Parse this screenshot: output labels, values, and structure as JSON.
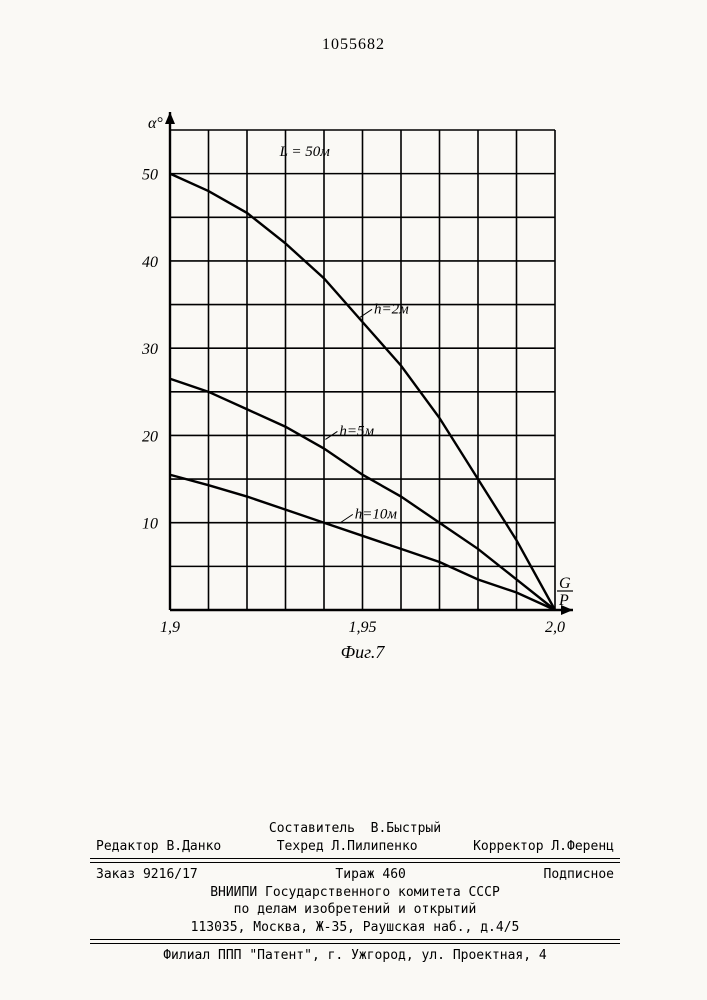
{
  "header_number": "1055682",
  "chart": {
    "type": "line",
    "figure_label": "Фиг.7",
    "y_axis_label": "α°",
    "x_axis_label": "G⁄P",
    "param_label": "L = 50м",
    "xlim": [
      1.9,
      2.0
    ],
    "ylim": [
      0,
      55
    ],
    "x_ticks": [
      1.9,
      1.95,
      2.0
    ],
    "x_tick_labels": [
      "1,9",
      "1,95",
      "2,0"
    ],
    "y_ticks": [
      10,
      20,
      30,
      40,
      50
    ],
    "y_tick_labels": [
      "10",
      "20",
      "30",
      "40",
      "50"
    ],
    "grid_x_step": 0.01,
    "grid_y_step": 5,
    "axis_color": "#000000",
    "grid_color": "#000000",
    "grid_stroke": 1.6,
    "axis_stroke": 2.4,
    "curve_stroke": 2.4,
    "background_color": "#ffffff",
    "label_fontsize": 16,
    "tick_fontsize": 16,
    "curve_label_fontsize": 15,
    "series": [
      {
        "label": "h=2м",
        "label_pos": {
          "x": 1.953,
          "y": 34
        },
        "points": [
          {
            "x": 1.9,
            "y": 50.0
          },
          {
            "x": 1.91,
            "y": 48.0
          },
          {
            "x": 1.92,
            "y": 45.5
          },
          {
            "x": 1.93,
            "y": 42.0
          },
          {
            "x": 1.94,
            "y": 38.0
          },
          {
            "x": 1.95,
            "y": 33.0
          },
          {
            "x": 1.96,
            "y": 28.0
          },
          {
            "x": 1.97,
            "y": 22.0
          },
          {
            "x": 1.98,
            "y": 15.0
          },
          {
            "x": 1.99,
            "y": 8.0
          },
          {
            "x": 2.0,
            "y": 0.0
          }
        ]
      },
      {
        "label": "h=5м",
        "label_pos": {
          "x": 1.944,
          "y": 20
        },
        "points": [
          {
            "x": 1.9,
            "y": 26.5
          },
          {
            "x": 1.91,
            "y": 25.0
          },
          {
            "x": 1.92,
            "y": 23.0
          },
          {
            "x": 1.93,
            "y": 21.0
          },
          {
            "x": 1.94,
            "y": 18.5
          },
          {
            "x": 1.95,
            "y": 15.5
          },
          {
            "x": 1.96,
            "y": 13.0
          },
          {
            "x": 1.97,
            "y": 10.0
          },
          {
            "x": 1.98,
            "y": 7.0
          },
          {
            "x": 1.99,
            "y": 3.5
          },
          {
            "x": 2.0,
            "y": 0.0
          }
        ]
      },
      {
        "label": "h=10м",
        "label_pos": {
          "x": 1.948,
          "y": 10.5
        },
        "points": [
          {
            "x": 1.9,
            "y": 15.5
          },
          {
            "x": 1.91,
            "y": 14.3
          },
          {
            "x": 1.92,
            "y": 13.0
          },
          {
            "x": 1.93,
            "y": 11.5
          },
          {
            "x": 1.94,
            "y": 10.0
          },
          {
            "x": 1.95,
            "y": 8.5
          },
          {
            "x": 1.96,
            "y": 7.0
          },
          {
            "x": 1.97,
            "y": 5.5
          },
          {
            "x": 1.98,
            "y": 3.5
          },
          {
            "x": 1.99,
            "y": 2.0
          },
          {
            "x": 2.0,
            "y": 0.0
          }
        ]
      }
    ]
  },
  "footer": {
    "compiler_label": "Составитель",
    "compiler": "В.Быстрый",
    "editor_label": "Редактор",
    "editor": "В.Данко",
    "techred_label": "Техред",
    "techred": "Л.Пилипенко",
    "corrector_label": "Корректор",
    "corrector": "Л.Ференц",
    "order_label": "Заказ",
    "order": "9216/17",
    "tirazh_label": "Тираж",
    "tirazh": "460",
    "podpisnoe": "Подписное",
    "org1": "ВНИИПИ Государственного комитета СССР",
    "org2": "по делам изобретений и открытий",
    "addr1": "113035, Москва, Ж-35, Раушская наб., д.4/5",
    "branch": "Филиал ППП \"Патент\", г. Ужгород, ул. Проектная, 4"
  }
}
